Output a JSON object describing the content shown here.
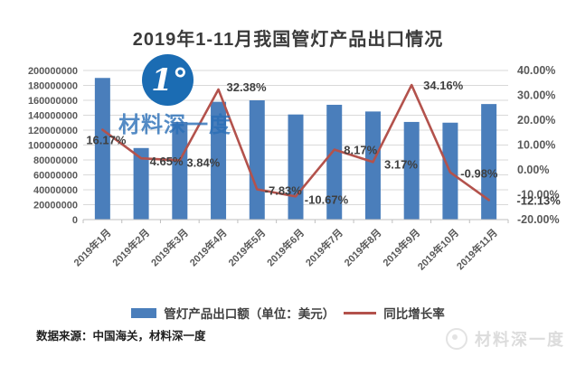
{
  "title": "2019年1-11月我国管灯产品出口情况",
  "source_note": "数据来源：中国海关，材料深一度",
  "watermark": {
    "circle_text": "1°",
    "overlay_text": "材料深一度",
    "footer_text": "材料深一度"
  },
  "legend": [
    {
      "label": "管灯产品出口额（单位：美元）",
      "swatch": "bar"
    },
    {
      "label": "同比增长率",
      "swatch": "line"
    }
  ],
  "colors": {
    "bar": "#4a7ebb",
    "line": "#b3524c",
    "grid": "#d9d9d9",
    "axis_line": "#bfbfbf",
    "axis_text": "#595959",
    "data_label": "#3f3f3f"
  },
  "chart_data": {
    "type": "bar+line",
    "title": "2019年1-11月我国管灯产品出口情况",
    "categories": [
      "2019年1月",
      "2019年2月",
      "2019年3月",
      "2019年4月",
      "2019年5月",
      "2019年6月",
      "2019年7月",
      "2019年8月",
      "2019年9月",
      "2019年10月",
      "2019年11月"
    ],
    "series": [
      {
        "name": "管灯产品出口额（单位：美元）",
        "chart": "bar",
        "axis": "left",
        "values": [
          190000000,
          96000000,
          131000000,
          158000000,
          160000000,
          141000000,
          154000000,
          145000000,
          131000000,
          130000000,
          155000000
        ]
      },
      {
        "name": "同比增长率",
        "chart": "line",
        "axis": "right",
        "values": [
          16.17,
          4.65,
          3.84,
          32.38,
          -7.83,
          -10.67,
          8.17,
          3.17,
          34.16,
          -0.98,
          -12.13
        ],
        "labels": [
          "16.17%",
          "4.65%",
          "3.84%",
          "32.38%",
          "-7.83%",
          "-10.67%",
          "8.17%",
          "3.17%",
          "34.16%",
          "-0.98%",
          "-12.13%"
        ]
      }
    ],
    "left_axis": {
      "min": 0,
      "max": 200000000,
      "step": 20000000,
      "ticks": [
        "200000000",
        "180000000",
        "160000000",
        "140000000",
        "120000000",
        "100000000",
        "80000000",
        "60000000",
        "40000000",
        "20000000",
        "0"
      ]
    },
    "right_axis": {
      "min": -20,
      "max": 40,
      "step": 10,
      "ticks": [
        "40.00%",
        "30.00%",
        "20.00%",
        "10.00%",
        "0.00%",
        "-10.00%",
        "-20.00%"
      ]
    },
    "grid": true,
    "legend_position": "bottom"
  }
}
